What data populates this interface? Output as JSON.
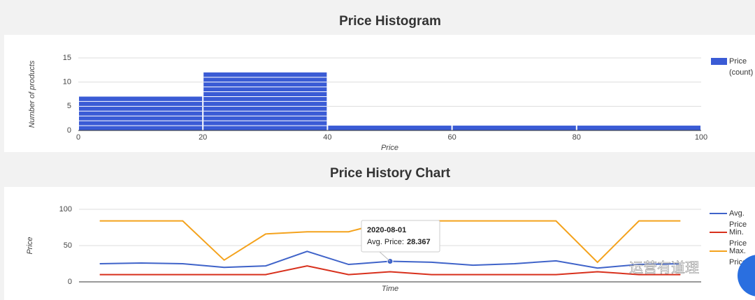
{
  "chart_data": [
    {
      "type": "histogram",
      "title": "Price Histogram",
      "x_label": "Price",
      "y_label": "Number of products",
      "bins": [
        0,
        20,
        40,
        60,
        80,
        100
      ],
      "series": [
        {
          "name": "Price (count)",
          "color": "#3a5bd5",
          "values": [
            7,
            12,
            1,
            1,
            1
          ]
        }
      ],
      "xlim": [
        0,
        100
      ],
      "xticks": [
        0,
        20,
        40,
        60,
        80,
        100
      ],
      "ylim": [
        0,
        15
      ],
      "yticks": [
        0,
        5,
        10,
        15
      ],
      "grid": true
    },
    {
      "type": "line",
      "title": "Price History Chart",
      "x_label": "Time",
      "y_label": "Price",
      "categories": [
        null,
        null,
        null,
        null,
        null,
        null,
        null,
        null,
        null,
        null,
        null,
        null,
        null,
        null,
        null
      ],
      "series": [
        {
          "name": "Avg. Price",
          "color": "#3f63c9",
          "values": [
            25,
            26,
            25,
            20,
            22,
            42,
            24,
            28.367,
            27,
            23,
            25,
            29,
            19,
            24,
            25
          ]
        },
        {
          "name": "Min. Price",
          "color": "#d8301c",
          "values": [
            10,
            10,
            10,
            10,
            10,
            22,
            10,
            14,
            10,
            10,
            10,
            10,
            14,
            10,
            10
          ]
        },
        {
          "name": "Max. Price",
          "color": "#f4a21c",
          "values": [
            84,
            84,
            84,
            30,
            66,
            69,
            69,
            84,
            84,
            84,
            84,
            84,
            27,
            84,
            84
          ]
        }
      ],
      "ylim": [
        0,
        100
      ],
      "yticks": [
        0,
        50,
        100
      ],
      "grid": true,
      "tooltip": {
        "series": 0,
        "index": 7,
        "title": "2020-08-01",
        "label": "Avg. Price:"
      }
    }
  ],
  "watermark": "运营有道理"
}
